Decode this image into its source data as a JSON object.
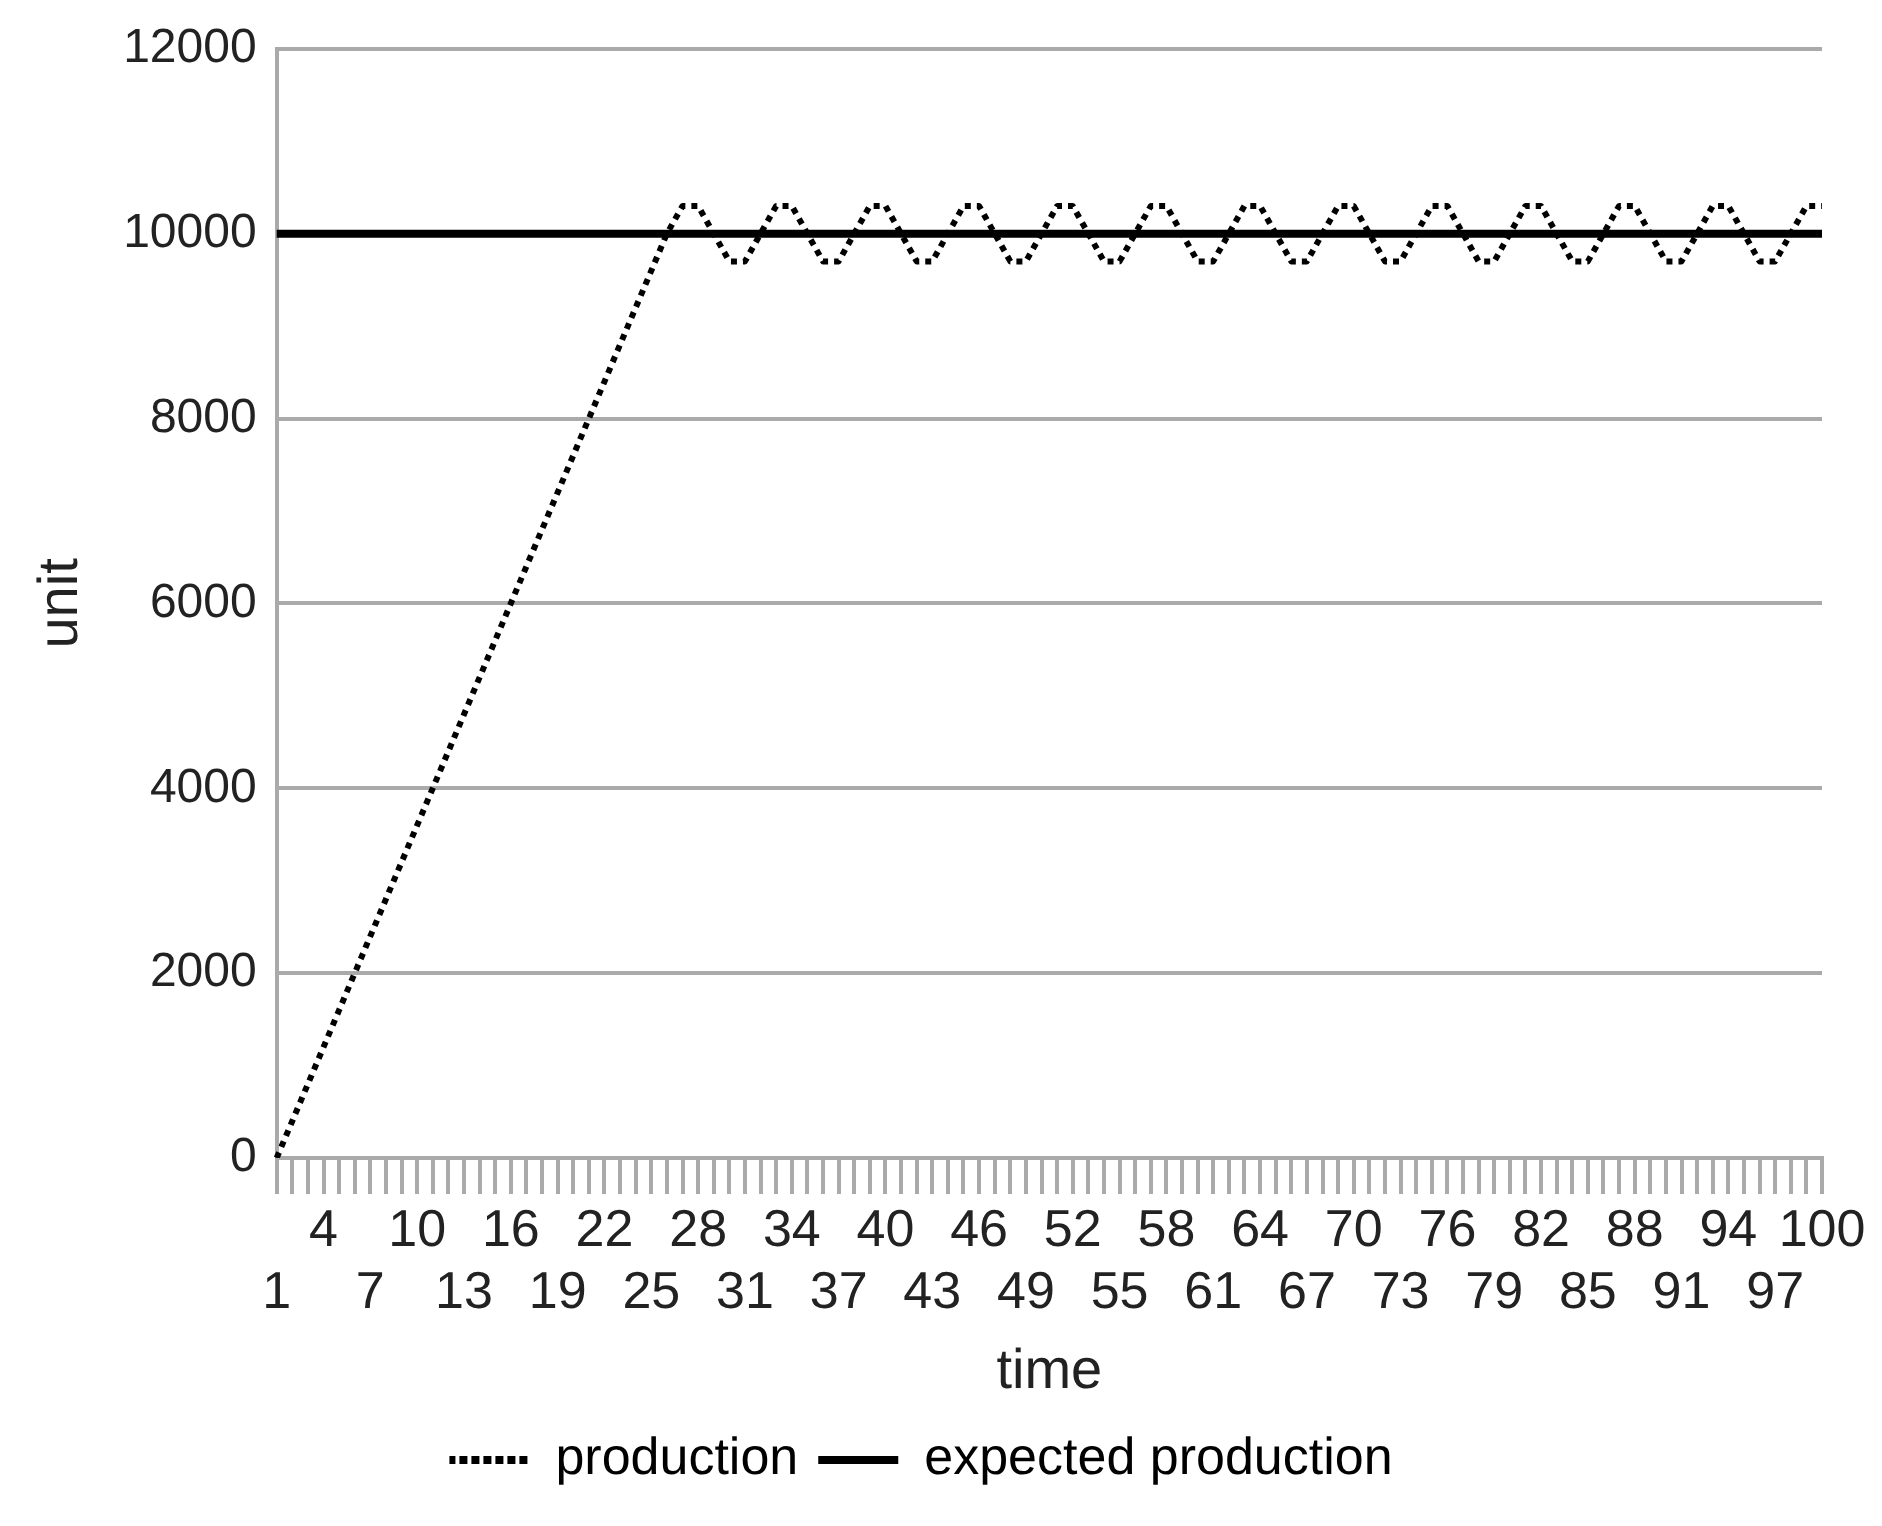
{
  "chart_data": {
    "type": "line",
    "xlabel": "time",
    "ylabel": "unit",
    "categories": [
      "1",
      null,
      null,
      "4",
      null,
      null,
      "7",
      null,
      null,
      "10",
      null,
      null,
      "13",
      null,
      null,
      "16",
      null,
      null,
      "19",
      null,
      null,
      "22",
      null,
      null,
      "25",
      null,
      null,
      "28",
      null,
      null,
      "31",
      null,
      null,
      "34",
      null,
      null,
      "37",
      null,
      null,
      "40",
      null,
      null,
      "43",
      null,
      null,
      "46",
      null,
      null,
      "49",
      null,
      null,
      "52",
      null,
      null,
      "55",
      null,
      null,
      "58",
      null,
      null,
      "61",
      null,
      null,
      "64",
      null,
      null,
      "67",
      null,
      null,
      "70",
      null,
      null,
      "73",
      null,
      null,
      "76",
      null,
      null,
      "79",
      null,
      null,
      "82",
      null,
      null,
      "85",
      null,
      null,
      "88",
      null,
      null,
      "91",
      null,
      null,
      "94",
      null,
      null,
      "97",
      null,
      null,
      "100"
    ],
    "series": [
      {
        "name": "production",
        "color": "#000000",
        "line_style": "dotted",
        "values": [
          0,
          400,
          800,
          1200,
          1600,
          2000,
          2400,
          2800,
          3200,
          3600,
          4000,
          4400,
          4800,
          5200,
          5600,
          6000,
          6400,
          6800,
          7200,
          7600,
          8000,
          8400,
          8800,
          9200,
          9600,
          10000,
          10300,
          10300,
          10000,
          9700,
          9700,
          10000,
          10300,
          10300,
          10000,
          9700,
          9700,
          10000,
          10300,
          10300,
          10000,
          9700,
          9700,
          10000,
          10300,
          10300,
          10000,
          9700,
          9700,
          10000,
          10300,
          10300,
          10000,
          9700,
          9700,
          10000,
          10300,
          10300,
          10000,
          9700,
          9700,
          10000,
          10300,
          10300,
          10000,
          9700,
          9700,
          10000,
          10300,
          10300,
          10000,
          9700,
          9700,
          10000,
          10300,
          10300,
          10000,
          9700,
          9700,
          10000,
          10300,
          10300,
          10000,
          9700,
          9700,
          10000,
          10300,
          10300,
          10000,
          9700,
          9700,
          10000,
          10300,
          10300,
          10000,
          9700,
          9700,
          10000,
          10300,
          10300
        ]
      },
      {
        "name": "expected production",
        "color": "#000000",
        "line_style": "solid",
        "values": [
          10000,
          10000,
          10000,
          10000,
          10000,
          10000,
          10000,
          10000,
          10000,
          10000,
          10000,
          10000,
          10000,
          10000,
          10000,
          10000,
          10000,
          10000,
          10000,
          10000,
          10000,
          10000,
          10000,
          10000,
          10000,
          10000,
          10000,
          10000,
          10000,
          10000,
          10000,
          10000,
          10000,
          10000,
          10000,
          10000,
          10000,
          10000,
          10000,
          10000,
          10000,
          10000,
          10000,
          10000,
          10000,
          10000,
          10000,
          10000,
          10000,
          10000,
          10000,
          10000,
          10000,
          10000,
          10000,
          10000,
          10000,
          10000,
          10000,
          10000,
          10000,
          10000,
          10000,
          10000,
          10000,
          10000,
          10000,
          10000,
          10000,
          10000,
          10000,
          10000,
          10000,
          10000,
          10000,
          10000,
          10000,
          10000,
          10000,
          10000,
          10000,
          10000,
          10000,
          10000,
          10000,
          10000,
          10000,
          10000,
          10000,
          10000,
          10000,
          10000,
          10000,
          10000,
          10000,
          10000,
          10000,
          10000,
          10000,
          10000
        ]
      }
    ],
    "ylim": [
      0,
      12000
    ],
    "yticks": [
      0,
      2000,
      4000,
      6000,
      8000,
      10000,
      12000
    ],
    "grid": "y",
    "legend": "bottom",
    "marker": "none"
  }
}
